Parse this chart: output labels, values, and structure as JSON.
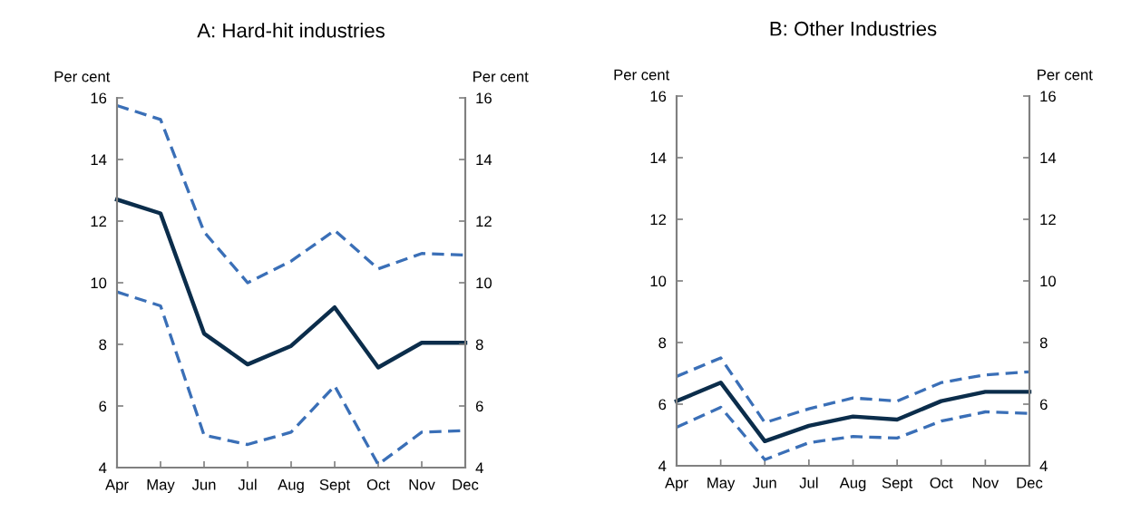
{
  "chart_data": [
    {
      "type": "line",
      "title": "A: Hard-hit industries",
      "ylabel": "Per cent",
      "y2label": "Per cent",
      "categories": [
        "Apr",
        "May",
        "Jun",
        "Jul",
        "Aug",
        "Sept",
        "Oct",
        "Nov",
        "Dec"
      ],
      "series": [
        {
          "color": "#3a6fb7",
          "line_style": "dashed",
          "values": [
            15.75,
            15.3,
            11.65,
            10.0,
            10.7,
            11.7,
            10.45,
            10.95,
            10.9
          ]
        },
        {
          "color": "#0b2d4b",
          "line_style": "solid",
          "values": [
            12.7,
            12.25,
            8.35,
            7.35,
            7.95,
            9.2,
            7.25,
            8.05,
            8.05
          ]
        },
        {
          "color": "#3a6fb7",
          "line_style": "dashed",
          "values": [
            9.7,
            9.25,
            5.05,
            4.75,
            5.15,
            6.65,
            4.1,
            5.15,
            5.2
          ]
        }
      ],
      "ylim": [
        4,
        16
      ],
      "yticks": [
        4,
        6,
        8,
        10,
        12,
        14,
        16
      ],
      "y2lim": [
        4,
        16
      ],
      "y2ticks": [
        4,
        6,
        8,
        10,
        12,
        14,
        16
      ]
    },
    {
      "type": "line",
      "title": "B: Other Industries",
      "ylabel": "Per cent",
      "y2label": "Per cent",
      "categories": [
        "Apr",
        "May",
        "Jun",
        "Jul",
        "Aug",
        "Sept",
        "Oct",
        "Nov",
        "Dec"
      ],
      "series": [
        {
          "color": "#3a6fb7",
          "line_style": "dashed",
          "values": [
            6.9,
            7.5,
            5.4,
            5.85,
            6.2,
            6.1,
            6.7,
            6.95,
            7.05
          ]
        },
        {
          "color": "#0b2d4b",
          "line_style": "solid",
          "values": [
            6.1,
            6.7,
            4.8,
            5.3,
            5.6,
            5.5,
            6.1,
            6.4,
            6.4
          ]
        },
        {
          "color": "#3a6fb7",
          "line_style": "dashed",
          "values": [
            5.25,
            5.9,
            4.2,
            4.75,
            4.95,
            4.9,
            5.45,
            5.75,
            5.7
          ]
        }
      ],
      "ylim": [
        4,
        16
      ],
      "yticks": [
        4,
        6,
        8,
        10,
        12,
        14,
        16
      ],
      "y2lim": [
        4,
        16
      ],
      "y2ticks": [
        4,
        6,
        8,
        10,
        12,
        14,
        16
      ]
    }
  ]
}
